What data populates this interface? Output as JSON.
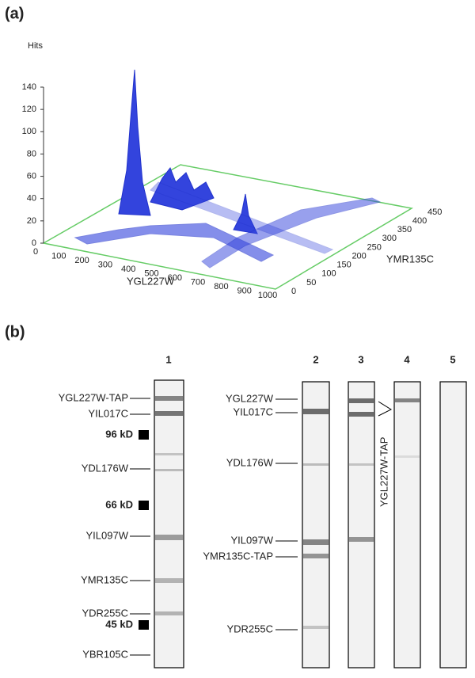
{
  "panel_a": {
    "label": "(a)",
    "z_axis": {
      "title": "Hits",
      "ticks": [
        0,
        20,
        40,
        60,
        80,
        100,
        120,
        140
      ]
    },
    "x_axis": {
      "title": "YGL227W",
      "ticks": [
        0,
        100,
        200,
        300,
        400,
        500,
        600,
        700,
        800,
        900,
        1000
      ]
    },
    "y_axis": {
      "title": "YMR135C",
      "ticks": [
        0,
        50,
        100,
        150,
        200,
        250,
        300,
        350,
        400,
        450
      ]
    }
  },
  "panel_b": {
    "label": "(b)",
    "lanes": [
      "1",
      "2",
      "3",
      "4",
      "5"
    ],
    "lane1_proteins": [
      "YGL227W-TAP",
      "YIL017C",
      "YDL176W",
      "YIL097W",
      "YMR135C",
      "YDR255C",
      "YBR105C"
    ],
    "size_markers": [
      "96 kD",
      "66 kD",
      "45 kD"
    ],
    "lane2_proteins": [
      "YGL227W",
      "YIL017C",
      "YDL176W",
      "YIL097W",
      "YMR135C-TAP",
      "YDR255C"
    ],
    "lane3_annotation": "YGL227W-TAP"
  }
}
